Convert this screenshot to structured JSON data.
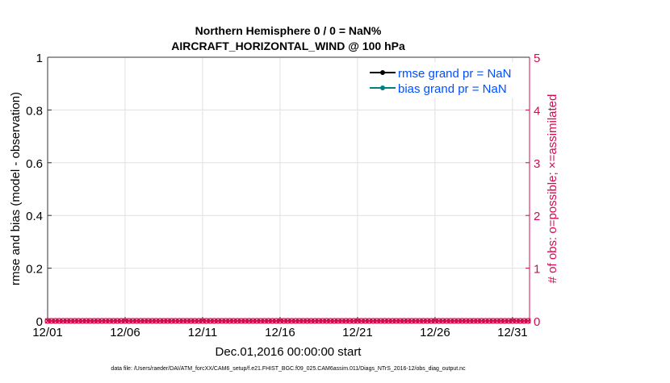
{
  "chart_data": {
    "type": "line",
    "title": [
      "Northern Hemisphere 0 / 0 = NaN%",
      "AIRCRAFT_HORIZONTAL_WIND @ 100 hPa"
    ],
    "xlabel": "Dec.01,2016 00:00:00 start",
    "ylabel": "rmse and bias (model - observation)",
    "y2label": "# of obs: o=possible; ×=assimilated",
    "xticks": [
      "12/01",
      "12/06",
      "12/11",
      "12/16",
      "12/21",
      "12/26",
      "12/31"
    ],
    "xtick_days": [
      0,
      5,
      10,
      15,
      20,
      25,
      30
    ],
    "xlim_days": [
      0,
      31.1
    ],
    "ylim": [
      0,
      1
    ],
    "yticks": [
      "0",
      "0.2",
      "0.4",
      "0.6",
      "0.8",
      "1"
    ],
    "y2lim": [
      0,
      5
    ],
    "y2ticks": [
      "0",
      "1",
      "2",
      "3",
      "4",
      "5"
    ],
    "grid": true,
    "legend_placement": "top-right",
    "series": [
      {
        "name": "rmse grand pr = NaN",
        "color": "#000000",
        "values": []
      },
      {
        "name": "bias grand pr = NaN",
        "color": "#00807F",
        "values": []
      },
      {
        "name": "possible",
        "marker": "o",
        "color": "#D60A50",
        "interval_days": 0.25,
        "range_days": [
          0,
          31
        ],
        "value": 0
      },
      {
        "name": "assimilated",
        "marker": "x",
        "color": "#D60A50",
        "interval_days": 0.25,
        "range_days": [
          0,
          31
        ],
        "value": 0
      }
    ],
    "colors": {
      "axis_right": "#D60A50",
      "legend_text": "#0050FF"
    }
  },
  "footer": "data file: /Users/raeder/DAI/ATM_forcXX/CAM6_setup/f.e21.FHIST_BGC.f09_025.CAM6assim.011/Diags_NTrS_2016-12/obs_diag_output.nc"
}
